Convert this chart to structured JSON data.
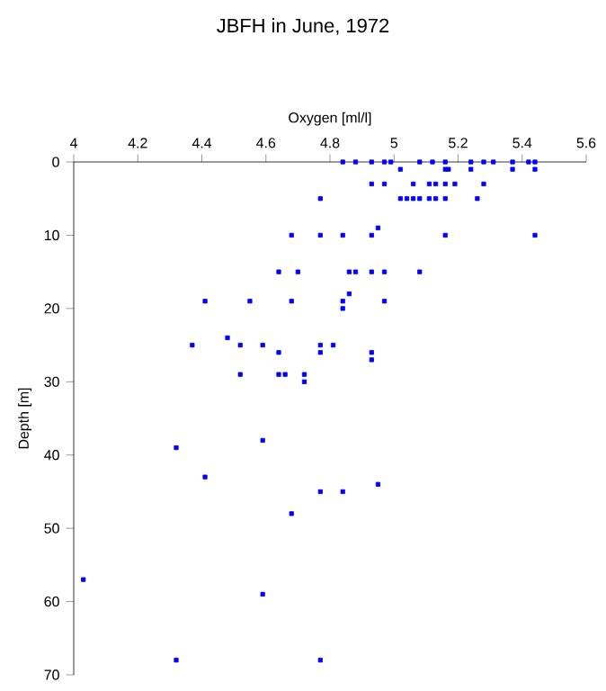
{
  "chart_data": {
    "type": "scatter",
    "title": "JBFH in June, 1972",
    "xlabel": "Oxygen [ml/l]",
    "ylabel": "Depth [m]",
    "x": [
      4.84,
      4.88,
      4.93,
      4.97,
      4.99,
      5.08,
      5.12,
      5.16,
      5.24,
      5.28,
      5.31,
      5.37,
      5.42,
      5.44,
      5.02,
      5.16,
      5.17,
      5.24,
      5.37,
      5.44,
      4.93,
      4.97,
      5.06,
      5.11,
      5.13,
      5.16,
      5.19,
      5.28,
      4.77,
      5.02,
      5.04,
      5.06,
      5.08,
      5.11,
      5.13,
      5.16,
      5.26,
      4.95,
      4.68,
      4.77,
      4.84,
      4.93,
      5.16,
      5.44,
      4.64,
      4.7,
      4.86,
      4.88,
      4.93,
      4.97,
      5.08,
      4.86,
      4.41,
      4.55,
      4.68,
      4.84,
      4.97,
      4.84,
      4.48,
      4.37,
      4.52,
      4.59,
      4.77,
      4.81,
      4.64,
      4.77,
      4.93,
      4.93,
      4.52,
      4.64,
      4.66,
      4.72,
      4.72,
      4.59,
      4.32,
      4.41,
      4.95,
      4.77,
      4.84,
      4.68,
      4.03,
      4.59,
      4.32,
      4.77
    ],
    "values": [
      0,
      0,
      0,
      0,
      0,
      0,
      0,
      0,
      0,
      0,
      0,
      0,
      0,
      0,
      1,
      1,
      1,
      1,
      1,
      1,
      3,
      3,
      3,
      3,
      3,
      3,
      3,
      3,
      5,
      5,
      5,
      5,
      5,
      5,
      5,
      5,
      5,
      9,
      10,
      10,
      10,
      10,
      10,
      10,
      15,
      15,
      15,
      15,
      15,
      15,
      15,
      18,
      19,
      19,
      19,
      19,
      19,
      20,
      24,
      25,
      25,
      25,
      25,
      25,
      26,
      26,
      26,
      27,
      29,
      29,
      29,
      29,
      30,
      38,
      39,
      43,
      44,
      45,
      45,
      48,
      57,
      59,
      68,
      68
    ],
    "color": "#0000ff",
    "marker": "square",
    "xlim": [
      4,
      5.6
    ],
    "xticks": [
      4,
      4.2,
      4.4,
      4.6,
      4.8,
      5,
      5.2,
      5.4,
      5.6
    ],
    "ylim": [
      70,
      0
    ],
    "yticks": [
      0,
      10,
      20,
      30,
      40,
      50,
      60,
      70
    ]
  }
}
